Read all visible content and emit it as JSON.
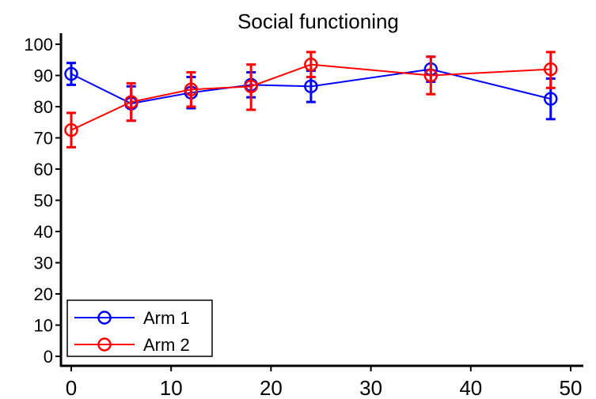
{
  "chart_data": {
    "type": "line",
    "title": "Social functioning",
    "xlabel": "",
    "ylabel": "",
    "xlim": [
      -1,
      50
    ],
    "ylim": [
      -2,
      104
    ],
    "x_ticks": [
      0,
      10,
      20,
      30,
      40,
      50
    ],
    "y_ticks": [
      0,
      10,
      20,
      30,
      40,
      50,
      60,
      70,
      80,
      90,
      100
    ],
    "grid": false,
    "legend_position": "bottom-left",
    "series": [
      {
        "name": "Arm 1",
        "color": "#0000ff",
        "marker": "open-circle",
        "x": [
          0,
          6,
          12,
          18,
          24,
          36,
          48
        ],
        "y": [
          90.5,
          81,
          84.5,
          87,
          86.5,
          92,
          82.5
        ],
        "err_low": [
          87,
          75.5,
          79.5,
          83,
          81.5,
          88,
          76
        ],
        "err_high": [
          94,
          86.5,
          89.5,
          91,
          91.5,
          96,
          89
        ]
      },
      {
        "name": "Arm 2",
        "color": "#ff0000",
        "marker": "open-circle",
        "x": [
          0,
          6,
          12,
          18,
          24,
          36,
          48
        ],
        "y": [
          72.5,
          81.5,
          85.5,
          86.5,
          93.5,
          90,
          92
        ],
        "err_low": [
          67,
          75.5,
          80,
          79,
          89.5,
          84,
          86
        ],
        "err_high": [
          78,
          87.5,
          91,
          93.5,
          97.5,
          96,
          97.5
        ]
      }
    ]
  }
}
